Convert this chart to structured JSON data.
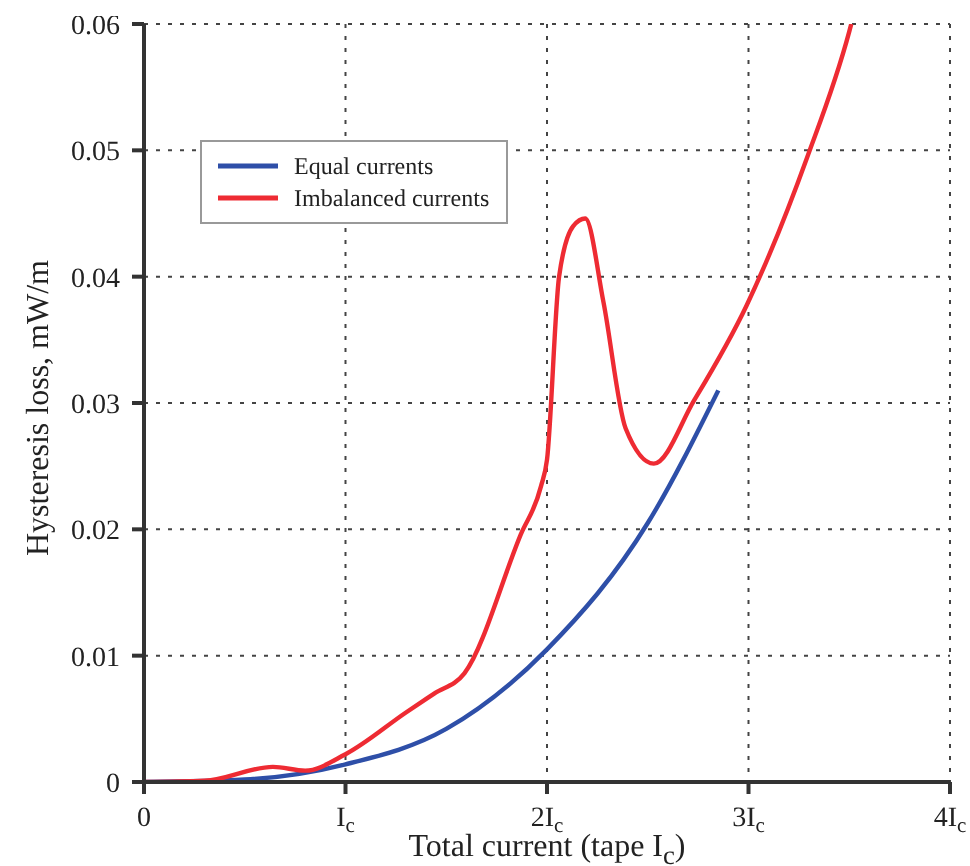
{
  "chart_data": {
    "type": "line",
    "xlabel": "Total current (tape I$_{c}$)",
    "ylabel": "Hysteresis loss, mW/m",
    "xlim": [
      0,
      4
    ],
    "xticks": [
      0,
      {
        "value": 1,
        "label": "I$_{c}$"
      },
      {
        "value": 2,
        "label": "2I$_{c}$"
      },
      {
        "value": 3,
        "label": "3I$_{c}$"
      },
      {
        "value": 4,
        "label": "4I$_{c}$"
      }
    ],
    "ylim": [
      0,
      0.06
    ],
    "yticks": [
      0,
      0.01,
      0.02,
      0.03,
      0.04,
      0.05,
      0.06
    ],
    "grid": true,
    "legend": "top left",
    "marker": "none",
    "line_style": "solid",
    "series": [
      {
        "name": "Equal currents",
        "color": "#2e4fa8",
        "x": [
          0,
          0.5,
          1,
          1.5,
          2,
          2.5,
          2.85
        ],
        "values": [
          0,
          0.0002,
          0.0014,
          0.0042,
          0.0105,
          0.0205,
          0.031
        ]
      },
      {
        "name": "Imbalanced currents",
        "color": "#ee2b33",
        "x": [
          0,
          0.3,
          0.64,
          0.8,
          1,
          1.3,
          1.44,
          1.59,
          1.87,
          1.97,
          2.0,
          2.06,
          2.13,
          2.19,
          2.28,
          2.39,
          2.53,
          2.73,
          2.99,
          3.29,
          3.5,
          3.51
        ],
        "values": [
          0,
          0.0001,
          0.0012,
          0.0009,
          0.0022,
          0.0055,
          0.007,
          0.0086,
          0.0196,
          0.0234,
          0.0255,
          0.04,
          0.044,
          0.0446,
          0.038,
          0.028,
          0.0252,
          0.0302,
          0.0377,
          0.0494,
          0.0594,
          0.06
        ]
      }
    ]
  }
}
